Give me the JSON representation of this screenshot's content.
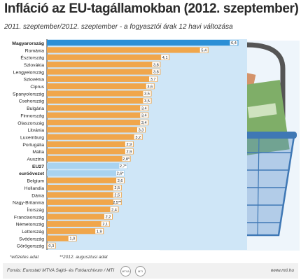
{
  "chart_data": {
    "type": "bar",
    "orientation": "horizontal",
    "title": "Infláció az EU-tagállamokban (2012. szeptember)",
    "subtitle": "2011. szeptember/2012. szeptember - a fogyasztói árak 12 havi változása",
    "categories": [
      "Magyarország",
      "Románia",
      "Észtország",
      "Szlovákia",
      "Lengyelország",
      "Szlovénia",
      "Ciprus",
      "Spanyolország",
      "Csehország",
      "Bulgária",
      "Finnország",
      "Olaszország",
      "Litvánia",
      "Luxemburg",
      "Portugália",
      "Málta",
      "Ausztria",
      "EU27",
      "euróövezet",
      "Belgium",
      "Hollandia",
      "Dánia",
      "Nagy-Britannia",
      "Írország",
      "Franciaország",
      "Németország",
      "Lettország",
      "Svédország",
      "Görögország"
    ],
    "values": [
      6.4,
      5.4,
      4.1,
      3.8,
      3.8,
      3.7,
      3.6,
      3.5,
      3.5,
      3.4,
      3.4,
      3.4,
      3.3,
      3.2,
      2.9,
      2.9,
      2.8,
      2.7,
      2.6,
      2.6,
      2.5,
      2.5,
      2.5,
      2.4,
      2.2,
      2.1,
      1.9,
      1.0,
      0.3
    ],
    "value_labels": [
      "6,4",
      "5,4",
      "4,1",
      "3,8",
      "3,8",
      "3,7",
      "3,6",
      "3,5",
      "3,5",
      "3,4",
      "3,4",
      "3,4",
      "3,3",
      "3,2",
      "2,9",
      "2,9",
      "2,8*",
      "2,7*",
      "2,6*",
      "2,6",
      "2,5",
      "2,5",
      "2,5**",
      "2,4",
      "2,2",
      "2,1",
      "1,9",
      "1,0",
      "0,3"
    ],
    "bold_categories": [
      "Magyarország",
      "EU27",
      "euróövezet"
    ],
    "xlim": [
      0,
      6.6
    ],
    "colors": {
      "highlight": "#2b8fd6",
      "eu": "#a9d3f0",
      "default": "#f0a64b",
      "background_panel": "#cfe6f7"
    }
  },
  "notes": {
    "estimated": "*előzetes adat",
    "august": "**2012. augusztusi adat"
  },
  "footer": {
    "source": "Forrás: Eurostat/ MTVA Sajtó- és Fotóarchívum / MTI",
    "url": "www.mti.hu",
    "badge_icons": [
      "mtva-logo-icon",
      "mti-logo-icon"
    ]
  }
}
